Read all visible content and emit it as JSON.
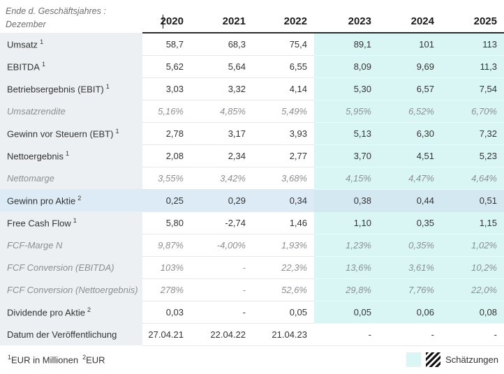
{
  "header": {
    "period_label_line1": "Ende d. Geschäftsjahres :",
    "period_label_line2": "Dezember",
    "years": [
      "2020",
      "2021",
      "2022",
      "2023",
      "2024",
      "2025"
    ],
    "estimates_from_column": 3
  },
  "table": {
    "rows": [
      {
        "label": "Umsatz",
        "sup": "1",
        "style": "normal",
        "values": [
          "58,7",
          "68,3",
          "75,4",
          "89,1",
          "101",
          "113"
        ]
      },
      {
        "label": "EBITDA",
        "sup": "1",
        "style": "normal",
        "values": [
          "5,62",
          "5,64",
          "6,55",
          "8,09",
          "9,69",
          "11,3"
        ]
      },
      {
        "label": "Betriebsergebnis (EBIT)",
        "sup": "1",
        "style": "normal",
        "values": [
          "3,03",
          "3,32",
          "4,14",
          "5,30",
          "6,57",
          "7,54"
        ]
      },
      {
        "label": "Umsatzrendite",
        "style": "ratio",
        "values": [
          "5,16%",
          "4,85%",
          "5,49%",
          "5,95%",
          "6,52%",
          "6,70%"
        ]
      },
      {
        "label": "Gewinn vor Steuern (EBT)",
        "sup": "1",
        "style": "normal",
        "values": [
          "2,78",
          "3,17",
          "3,93",
          "5,13",
          "6,30",
          "7,32"
        ]
      },
      {
        "label": "Nettoergebnis",
        "sup": "1",
        "style": "normal",
        "values": [
          "2,08",
          "2,34",
          "2,77",
          "3,70",
          "4,51",
          "5,23"
        ]
      },
      {
        "label": "Nettomarge",
        "style": "ratio",
        "values": [
          "3,55%",
          "3,42%",
          "3,68%",
          "4,15%",
          "4,47%",
          "4,64%"
        ]
      },
      {
        "label": "Gewinn pro Aktie",
        "sup": "2",
        "style": "highlight",
        "values": [
          "0,25",
          "0,29",
          "0,34",
          "0,38",
          "0,44",
          "0,51"
        ]
      },
      {
        "label": "Free Cash Flow",
        "sup": "1",
        "style": "normal",
        "values": [
          "5,80",
          "-2,74",
          "1,46",
          "1,10",
          "0,35",
          "1,15"
        ]
      },
      {
        "label": "FCF-Marge N",
        "style": "ratio",
        "values": [
          "9,87%",
          "-4,00%",
          "1,93%",
          "1,23%",
          "0,35%",
          "1,02%"
        ]
      },
      {
        "label": "FCF Conversion (EBITDA)",
        "style": "ratio",
        "values": [
          "103%",
          "-",
          "22,3%",
          "13,6%",
          "3,61%",
          "10,2%"
        ]
      },
      {
        "label": "FCF Conversion (Nettoergebnis)",
        "style": "ratio",
        "values": [
          "278%",
          "-",
          "52,6%",
          "29,8%",
          "7,76%",
          "22,0%"
        ]
      },
      {
        "label": "Dividende pro Aktie",
        "sup": "2",
        "style": "normal",
        "values": [
          "0,03",
          "-",
          "0,05",
          "0,05",
          "0,06",
          "0,08"
        ]
      },
      {
        "label": "Datum der Veröffentlichung",
        "style": "publication",
        "values": [
          "27.04.21",
          "22.04.22",
          "21.04.23",
          "-",
          "-",
          "-"
        ]
      }
    ]
  },
  "footnotes": {
    "marker1": "1",
    "text1": "EUR in Millionen",
    "marker2": "2",
    "text2": "EUR"
  },
  "legend": {
    "label": "Schätzungen"
  },
  "colors": {
    "estimate_bg": "#d9f6f5",
    "highlight_row_bg": "#dcebf5",
    "highlight_estimate_bg": "#d3e8f0",
    "label_column_bg": "#edf0f2",
    "header_rule": "#2b2b2b"
  }
}
